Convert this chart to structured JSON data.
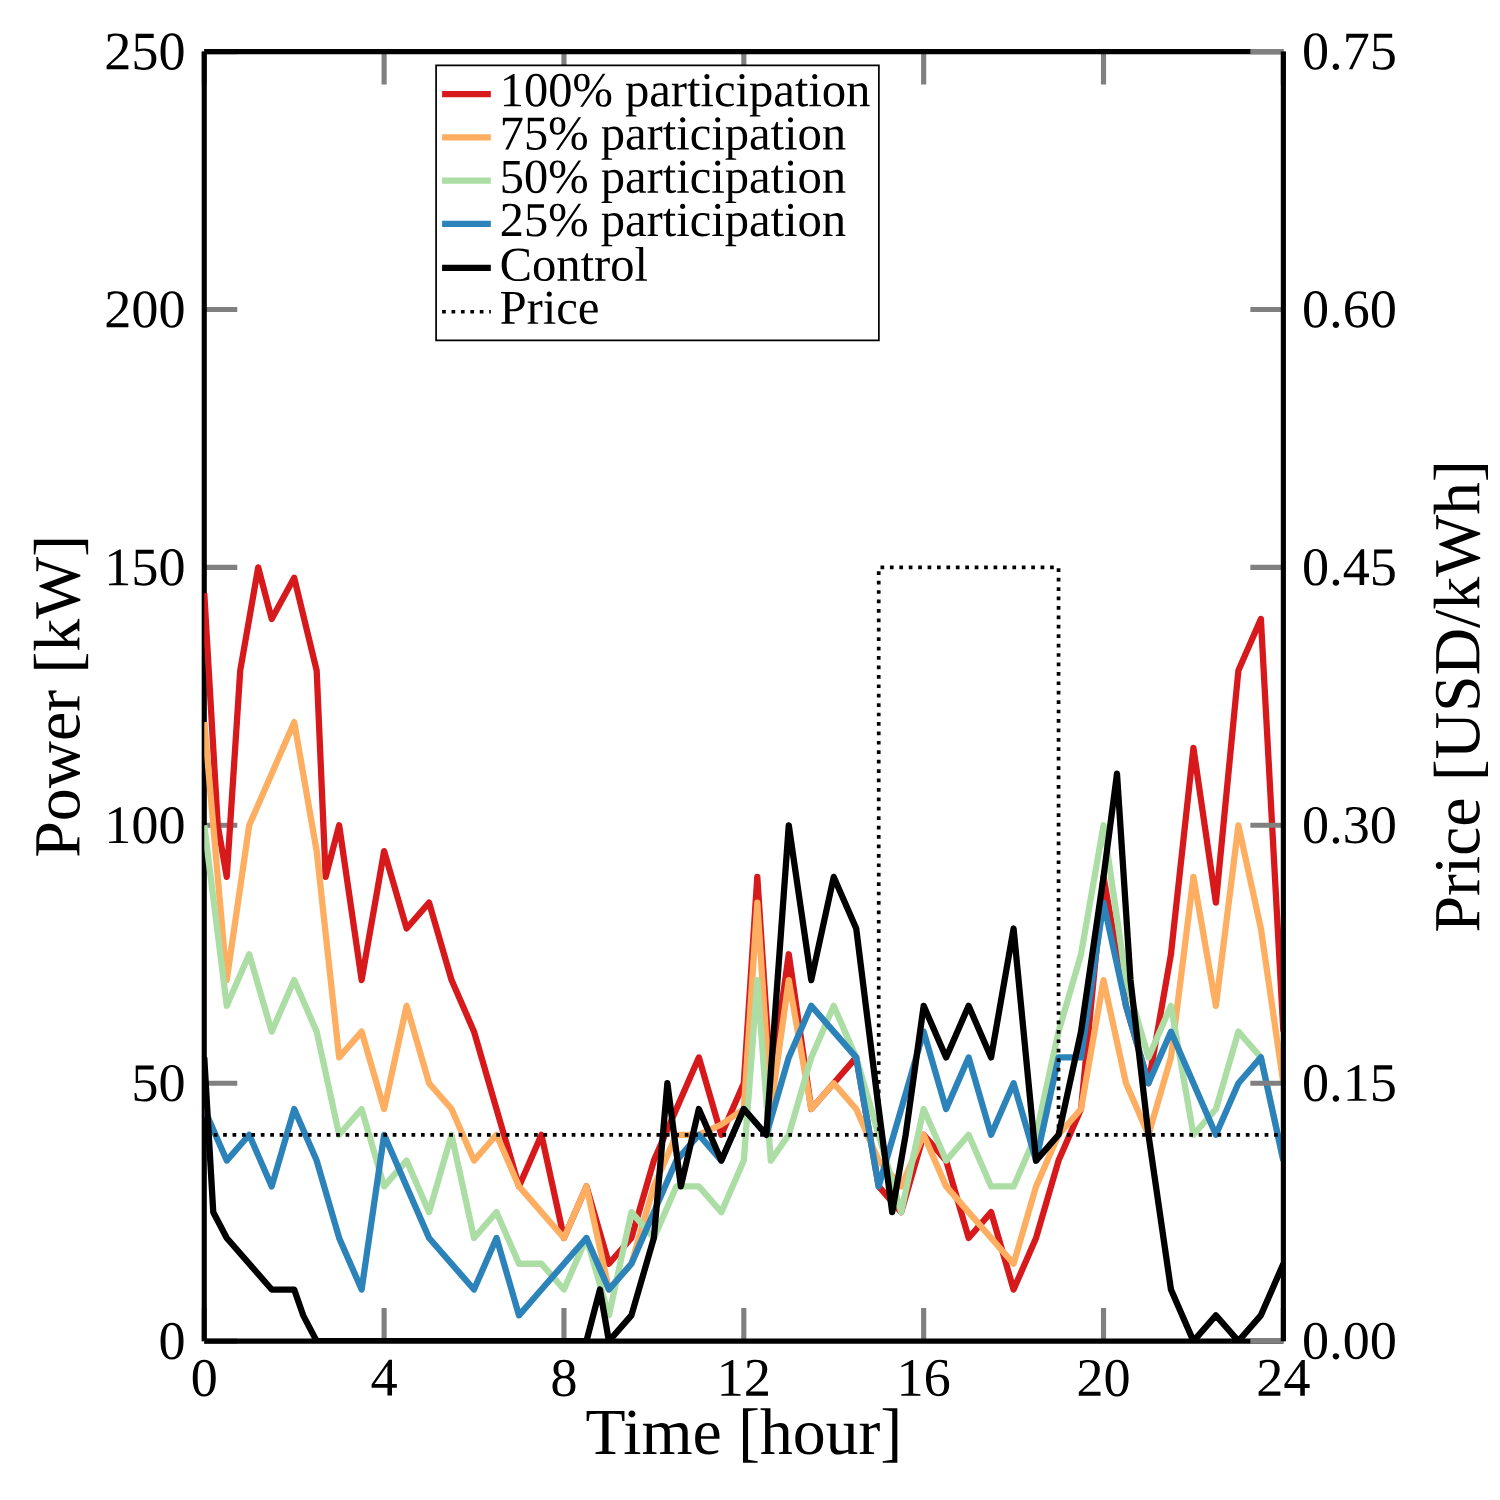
{
  "chart_data": {
    "type": "line",
    "xlabel": "Time [hour]",
    "ylabel": "Power [kW]",
    "y2label": "Price [USD/kWh]",
    "xlim": [
      0,
      24
    ],
    "xticks": [
      0,
      4,
      8,
      12,
      16,
      20,
      24
    ],
    "ylim": [
      0,
      250
    ],
    "yticks": [
      0,
      50,
      100,
      150,
      200,
      250
    ],
    "y2lim": [
      0,
      0.75
    ],
    "y2ticks": [
      {
        "value": 0,
        "label": "0.00"
      },
      {
        "value": 0.15,
        "label": "0.15"
      },
      {
        "value": 0.3,
        "label": "0.30"
      },
      {
        "value": 0.45,
        "label": "0.45"
      },
      {
        "value": 0.6,
        "label": "0.60"
      },
      {
        "value": 0.75,
        "label": "0.75"
      }
    ],
    "legend": "top",
    "grid": false,
    "marker": "none",
    "series": [
      {
        "name": "100% participation",
        "color": "#d7191c",
        "x": [
          0,
          0.3,
          0.5,
          0.8,
          1.2,
          1.5,
          2,
          2.5,
          2.7,
          3,
          3.5,
          4,
          4.5,
          5,
          5.5,
          6,
          6.5,
          7,
          7.5,
          8,
          8.5,
          9,
          9.5,
          10,
          10.5,
          11,
          11.5,
          12,
          12.3,
          12.6,
          13,
          13.5,
          14,
          14.5,
          15,
          15.5,
          16,
          16.5,
          17,
          17.5,
          18,
          18.5,
          19,
          19.5,
          20,
          20.5,
          21,
          21.5,
          22,
          22.5,
          23,
          23.5,
          24
        ],
        "values": [
          145,
          100,
          90,
          130,
          150,
          140,
          148,
          130,
          90,
          100,
          70,
          95,
          80,
          85,
          70,
          60,
          45,
          30,
          40,
          20,
          30,
          15,
          20,
          35,
          45,
          55,
          40,
          50,
          90,
          50,
          75,
          45,
          50,
          55,
          30,
          25,
          40,
          35,
          20,
          25,
          10,
          20,
          35,
          45,
          90,
          65,
          50,
          75,
          115,
          85,
          130,
          140,
          60
        ]
      },
      {
        "name": "75%   participation",
        "color": "#fdae61",
        "x": [
          0,
          0.5,
          1,
          1.5,
          2,
          2.5,
          3,
          3.5,
          4,
          4.5,
          5,
          5.5,
          6,
          6.5,
          7,
          7.5,
          8,
          8.5,
          9,
          9.5,
          10,
          10.5,
          11,
          11.5,
          12,
          12.3,
          12.6,
          13,
          13.5,
          14,
          14.5,
          15,
          15.5,
          16,
          16.5,
          17,
          17.5,
          18,
          18.5,
          19,
          19.5,
          20,
          20.5,
          21,
          21.5,
          22,
          22.5,
          23,
          23.5,
          24
        ],
        "values": [
          120,
          70,
          100,
          110,
          120,
          95,
          55,
          60,
          45,
          65,
          50,
          45,
          35,
          40,
          30,
          25,
          20,
          30,
          10,
          15,
          30,
          40,
          40,
          42,
          45,
          85,
          45,
          70,
          45,
          50,
          45,
          35,
          30,
          40,
          30,
          25,
          20,
          15,
          30,
          40,
          45,
          70,
          50,
          40,
          55,
          90,
          65,
          100,
          80,
          50
        ]
      },
      {
        "name": "50%   participation",
        "color": "#abdda4",
        "x": [
          0,
          0.5,
          1,
          1.5,
          2,
          2.5,
          3,
          3.5,
          4,
          4.5,
          5,
          5.5,
          6,
          6.5,
          7,
          7.5,
          8,
          8.5,
          9,
          9.5,
          10,
          10.5,
          11,
          11.5,
          12,
          12.3,
          12.6,
          13,
          13.5,
          14,
          14.5,
          15,
          15.5,
          16,
          16.5,
          17,
          17.5,
          18,
          18.5,
          19,
          19.5,
          20,
          20.5,
          21,
          21.5,
          22,
          22.5,
          23,
          23.5,
          24
        ],
        "values": [
          100,
          65,
          75,
          60,
          70,
          60,
          40,
          45,
          30,
          35,
          25,
          40,
          20,
          25,
          15,
          15,
          10,
          20,
          5,
          25,
          20,
          30,
          30,
          25,
          35,
          70,
          35,
          40,
          55,
          65,
          55,
          40,
          25,
          45,
          35,
          40,
          30,
          30,
          40,
          60,
          75,
          100,
          70,
          55,
          65,
          40,
          45,
          60,
          55,
          35
        ]
      },
      {
        "name": "25%   participation",
        "color": "#2b83ba",
        "x": [
          0,
          0.5,
          1,
          1.5,
          2,
          2.5,
          3,
          3.5,
          4,
          4.5,
          5,
          5.5,
          6,
          6.5,
          7,
          7.5,
          8,
          8.5,
          9,
          9.5,
          10,
          10.5,
          11,
          11.5,
          12,
          12.5,
          13,
          13.5,
          14,
          14.5,
          15,
          15.5,
          16,
          16.5,
          17,
          17.5,
          18,
          18.5,
          19,
          19.5,
          20,
          20.5,
          21,
          21.5,
          22,
          22.5,
          23,
          23.5,
          24
        ],
        "values": [
          45,
          35,
          40,
          30,
          45,
          35,
          20,
          10,
          40,
          30,
          20,
          15,
          10,
          20,
          5,
          10,
          15,
          20,
          10,
          15,
          25,
          35,
          40,
          35,
          45,
          40,
          55,
          65,
          60,
          55,
          30,
          45,
          60,
          45,
          55,
          40,
          50,
          35,
          55,
          55,
          85,
          65,
          50,
          60,
          50,
          40,
          50,
          55,
          35
        ]
      },
      {
        "name": "Control",
        "color": "#000000",
        "x": [
          0,
          0.2,
          0.5,
          1,
          1.5,
          2,
          2.2,
          2.5,
          3,
          8.5,
          8.8,
          9,
          9.5,
          10,
          10.3,
          10.6,
          11,
          11.5,
          12,
          12.5,
          13,
          13.5,
          14,
          14.5,
          15,
          15.3,
          15.6,
          16,
          16.5,
          17,
          17.5,
          18,
          18.5,
          19,
          19.5,
          20,
          20.3,
          20.6,
          21,
          21.5,
          22,
          22.5,
          23,
          23.5,
          24
        ],
        "values": [
          55,
          25,
          20,
          15,
          10,
          10,
          5,
          0,
          0,
          0,
          10,
          0,
          5,
          20,
          50,
          30,
          45,
          35,
          45,
          40,
          100,
          70,
          90,
          80,
          45,
          25,
          40,
          65,
          55,
          65,
          55,
          80,
          35,
          40,
          60,
          90,
          110,
          70,
          40,
          10,
          0,
          5,
          0,
          5,
          15
        ]
      },
      {
        "name": "Price",
        "type": "step",
        "axis": "y2",
        "color": "#000000",
        "line_style": "dotted",
        "x": [
          0,
          15,
          19,
          24
        ],
        "values": [
          0.12,
          0.45,
          0.12,
          0.12
        ]
      }
    ]
  }
}
